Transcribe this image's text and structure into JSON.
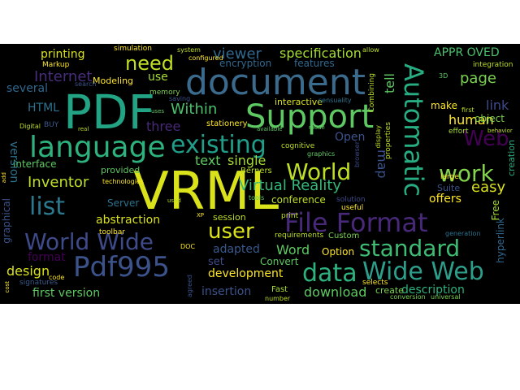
{
  "words": {
    "vrml": "VRML",
    "pdf": "PDF",
    "document": "document",
    "support": "Support",
    "language": "language",
    "pdf995": "Pdf995",
    "file_format": "File Format",
    "world_wide": "World Wide",
    "data": "data",
    "wide_web": "Wide Web",
    "existing": "existing",
    "world": "World",
    "work": "work",
    "automatic": "Automatic",
    "standard": "standard",
    "list": "list",
    "user": "user",
    "need": "need",
    "web": "Web",
    "virtual_reality": "Virtual Reality",
    "viewer": "viewer",
    "specification": "specification",
    "internet": "Internet",
    "page": "page",
    "within": "Within",
    "inventor": "Inventor",
    "human": "human",
    "easy": "easy",
    "html": "HTML",
    "three": "three",
    "text": "text",
    "single": "single",
    "abstraction": "abstraction",
    "adapted": "adapted",
    "word": "Word",
    "development": "development",
    "download": "download",
    "description": "description",
    "insertion": "insertion",
    "first_version": "first version",
    "design": "design",
    "format": "format",
    "printing": "printing",
    "interface": "interface",
    "open": "Open",
    "offers": "offers",
    "link": "link",
    "appr_oved": "APPR OVED",
    "encryption": "encryption",
    "features": "features",
    "interactive": "interactive",
    "conference": "conference",
    "map": "map",
    "tell": "tell",
    "several": "several",
    "modeling": "Modeling",
    "use": "use",
    "make": "make",
    "object": "object",
    "session": "session",
    "set": "set",
    "server": "Server",
    "convert": "Convert",
    "option": "Option",
    "suite": "Suite",
    "version": "version",
    "graphical": "graphical",
    "provided": "provided",
    "hyperlink": "hyperlink",
    "creation": "creation",
    "markup": "Markup",
    "simulation": "simulation",
    "memory": "memory",
    "stationery": "stationery",
    "cognitive": "cognitive",
    "integration": "integration",
    "free": "Free",
    "berners": "Berners",
    "solution": "solution",
    "custom": "Custom",
    "selects": "selects",
    "create": "create",
    "signatures": "signatures",
    "fast": "Fast",
    "requirements": "requirements",
    "graphics": "graphics",
    "combining": "Combining",
    "properties": "properties",
    "useful": "useful",
    "large": "large",
    "toolbar": "toolbar",
    "print": "print",
    "conversion": "conversion",
    "universal": "universal",
    "first": "first",
    "effort": "effort",
    "technologies": "technologies",
    "digital": "Digital",
    "search": "search",
    "configured": "configured",
    "system": "system",
    "allow": "allow",
    "display": "display",
    "browser": "browser",
    "number": "number",
    "code": "code",
    "generation": "generation",
    "agreed": "agreed",
    "tools": "tools",
    "sensuality": "sensuality",
    "saving": "saving",
    "behavior": "behavior",
    "available": "available",
    "mode": "mode",
    "real": "real",
    "cost": "cost",
    "add": "add",
    "used": "used",
    "3d": "3D",
    "uses": "uses",
    "buy": "BUY",
    "xp": "XP",
    "doc": "DOC"
  },
  "colors": {
    "background": "#000000",
    "canvas": "#ffffff",
    "palette": [
      "#440154",
      "#3b528b",
      "#21918c",
      "#5ec962",
      "#fde725",
      "#2c728e",
      "#27ad81",
      "#aadc32",
      "#472d7b",
      "#35b779"
    ]
  }
}
